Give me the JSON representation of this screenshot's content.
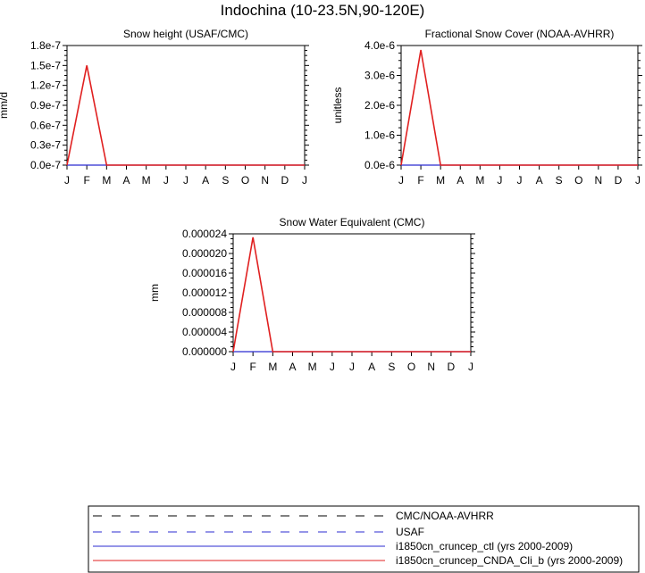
{
  "main_title": "Indochina (10-23.5N,90-120E)",
  "colors": {
    "axis": "#000000",
    "ctl": "#2b2bd0",
    "cnda": "#e02020",
    "obs": "#000000"
  },
  "chart_data": [
    {
      "type": "line",
      "title": "Snow height (USAF/CMC)",
      "ylabel": "mm/d",
      "xlabel": "",
      "categories": [
        "J",
        "F",
        "M",
        "A",
        "M",
        "J",
        "J",
        "A",
        "S",
        "O",
        "N",
        "D",
        "J"
      ],
      "ylim": [
        0,
        1.8e-07
      ],
      "yticks": [
        "0.0e-7",
        "0.3e-7",
        "0.6e-7",
        "0.9e-7",
        "1.2e-7",
        "1.5e-7",
        "1.8e-7"
      ],
      "ytick_values": [
        0,
        3e-08,
        6e-08,
        9e-08,
        1.2e-07,
        1.5e-07,
        1.8e-07
      ],
      "series": [
        {
          "name": "i1850cn_cruncep_ctl (yrs 2000-2009)",
          "color": "#2b2bd0",
          "values": [
            0,
            0,
            0,
            0,
            0,
            0,
            0,
            0,
            0,
            0,
            0,
            0,
            0
          ]
        },
        {
          "name": "i1850cn_cruncep_CNDA_Cli_b (yrs 2000-2009)",
          "color": "#e02020",
          "values": [
            0,
            1.5e-07,
            0,
            0,
            0,
            0,
            0,
            0,
            0,
            0,
            0,
            0,
            0
          ]
        }
      ]
    },
    {
      "type": "line",
      "title": "Fractional Snow Cover (NOAA-AVHRR)",
      "ylabel": "unitless",
      "xlabel": "",
      "categories": [
        "J",
        "F",
        "M",
        "A",
        "M",
        "J",
        "J",
        "A",
        "S",
        "O",
        "N",
        "D",
        "J"
      ],
      "ylim": [
        0,
        4e-06
      ],
      "yticks": [
        "0.0e-6",
        "1.0e-6",
        "2.0e-6",
        "3.0e-6",
        "4.0e-6"
      ],
      "ytick_values": [
        0,
        1e-06,
        2e-06,
        3e-06,
        4e-06
      ],
      "series": [
        {
          "name": "i1850cn_cruncep_ctl (yrs 2000-2009)",
          "color": "#2b2bd0",
          "values": [
            0,
            0,
            0,
            0,
            0,
            0,
            0,
            0,
            0,
            0,
            0,
            0,
            0
          ]
        },
        {
          "name": "i1850cn_cruncep_CNDA_Cli_b (yrs 2000-2009)",
          "color": "#e02020",
          "values": [
            0,
            3.85e-06,
            0,
            0,
            0,
            0,
            0,
            0,
            0,
            0,
            0,
            0,
            0
          ]
        }
      ]
    },
    {
      "type": "line",
      "title": "Snow Water Equivalent (CMC)",
      "ylabel": "mm",
      "xlabel": "",
      "categories": [
        "J",
        "F",
        "M",
        "A",
        "M",
        "J",
        "J",
        "A",
        "S",
        "O",
        "N",
        "D",
        "J"
      ],
      "ylim": [
        0,
        2.4e-05
      ],
      "yticks": [
        "0.000000",
        "0.000004",
        "0.000008",
        "0.000012",
        "0.000016",
        "0.000020",
        "0.000024"
      ],
      "ytick_values": [
        0,
        4e-06,
        8e-06,
        1.2e-05,
        1.6e-05,
        2e-05,
        2.4e-05
      ],
      "series": [
        {
          "name": "i1850cn_cruncep_ctl (yrs 2000-2009)",
          "color": "#2b2bd0",
          "values": [
            0,
            0,
            0,
            0,
            0,
            0,
            0,
            0,
            0,
            0,
            0,
            0,
            0
          ]
        },
        {
          "name": "i1850cn_cruncep_CNDA_Cli_b (yrs 2000-2009)",
          "color": "#e02020",
          "values": [
            0,
            2.33e-05,
            0,
            0,
            0,
            0,
            0,
            0,
            0,
            0,
            0,
            0,
            0
          ]
        }
      ]
    }
  ],
  "legend": [
    {
      "label": "CMC/NOAA-AVHRR",
      "color": "#000000",
      "style": "dashed-long"
    },
    {
      "label": "USAF",
      "color": "#2b2bd0",
      "style": "dashed-short"
    },
    {
      "label": "i1850cn_cruncep_ctl (yrs 2000-2009)",
      "color": "#2b2bd0",
      "style": "solid"
    },
    {
      "label": "i1850cn_cruncep_CNDA_Cli_b (yrs 2000-2009)",
      "color": "#e02020",
      "style": "solid"
    }
  ]
}
